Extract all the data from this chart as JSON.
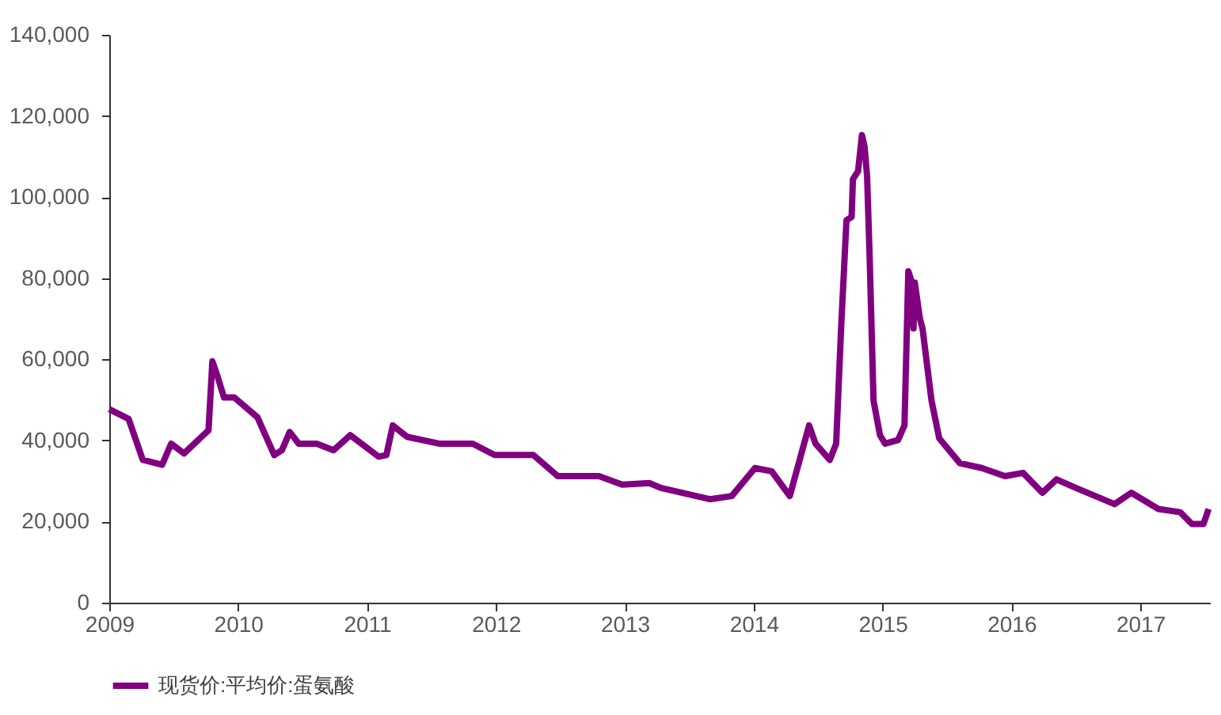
{
  "chart_data": {
    "type": "line",
    "x": [
      2009.0,
      2009.15,
      2009.26,
      2009.41,
      2009.48,
      2009.58,
      2009.73,
      2009.77,
      2009.8,
      2009.84,
      2009.89,
      2009.97,
      2010.15,
      2010.28,
      2010.34,
      2010.4,
      2010.47,
      2010.61,
      2010.74,
      2010.87,
      2011.09,
      2011.15,
      2011.2,
      2011.31,
      2011.56,
      2011.82,
      2011.99,
      2012.29,
      2012.48,
      2012.8,
      2012.98,
      2013.19,
      2013.28,
      2013.66,
      2013.83,
      2014.01,
      2014.14,
      2014.28,
      2014.43,
      2014.48,
      2014.59,
      2014.64,
      2014.68,
      2014.72,
      2014.76,
      2014.77,
      2014.81,
      2014.84,
      2014.86,
      2014.88,
      2014.9,
      2014.93,
      2014.98,
      2015.02,
      2015.12,
      2015.17,
      2015.2,
      2015.22,
      2015.24,
      2015.25,
      2015.29,
      2015.31,
      2015.38,
      2015.44,
      2015.6,
      2015.77,
      2015.95,
      2016.09,
      2016.24,
      2016.35,
      2016.5,
      2016.8,
      2016.93,
      2017.14,
      2017.31,
      2017.4,
      2017.49,
      2017.53
    ],
    "series": [
      {
        "name": "现货价:平均价:蛋氨酸",
        "color": "#800080",
        "values": [
          47700,
          45300,
          35200,
          34000,
          39200,
          36800,
          41300,
          42500,
          59500,
          55800,
          50600,
          50600,
          45700,
          36400,
          37600,
          42100,
          39200,
          39200,
          37600,
          41300,
          36000,
          36400,
          43700,
          40900,
          39200,
          39200,
          36400,
          36400,
          31200,
          31200,
          29100,
          29500,
          28300,
          25500,
          26300,
          33200,
          32400,
          26300,
          43700,
          39200,
          35200,
          39200,
          68800,
          94300,
          95100,
          104400,
          106400,
          115300,
          112500,
          105200,
          85000,
          49800,
          41300,
          39200,
          40100,
          43700,
          81700,
          79700,
          67600,
          78900,
          70000,
          67600,
          49800,
          40500,
          34400,
          33200,
          31200,
          32000,
          27100,
          30400,
          28300,
          24300,
          27100,
          23100,
          22300,
          19400,
          19400,
          23100
        ]
      }
    ],
    "xlim": [
      2009,
      2017.54
    ],
    "xticks": [
      2009,
      2010,
      2011,
      2012,
      2013,
      2014,
      2015,
      2016,
      2017
    ],
    "ylim": [
      0,
      140000
    ],
    "yticks": [
      0,
      {
        "value": 20000,
        "label": "20,000"
      },
      {
        "value": 40000,
        "label": "40,000"
      },
      {
        "value": 60000,
        "label": "60,000"
      },
      {
        "value": 80000,
        "label": "80,000"
      },
      {
        "value": 100000,
        "label": "100,000"
      },
      {
        "value": 120000,
        "label": "120,000"
      },
      {
        "value": 140000,
        "label": "140,000"
      }
    ],
    "grid": false,
    "legend": "bottom",
    "marker": "none",
    "line_style": "solid"
  }
}
